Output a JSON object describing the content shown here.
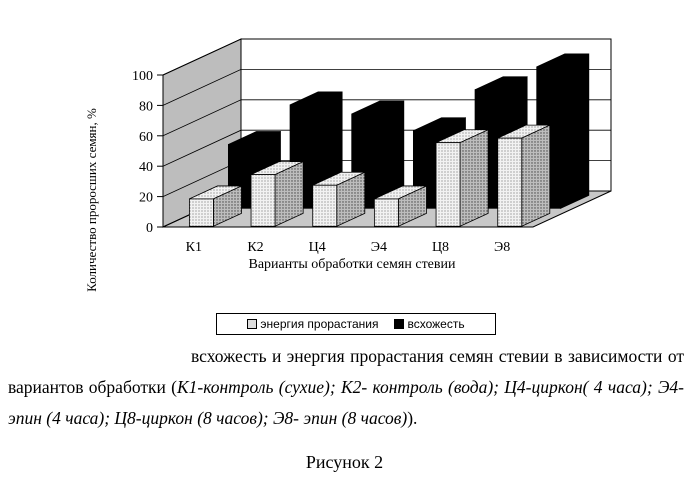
{
  "chart_data": {
    "type": "bar",
    "categories": [
      "К1",
      "К2",
      "Ц4",
      "Э4",
      "Ц8",
      "Э8"
    ],
    "series": [
      {
        "name": "энергия прорастания",
        "values": [
          18,
          34,
          27,
          18,
          55,
          58
        ]
      },
      {
        "name": "всхожесть",
        "values": [
          42,
          68,
          62,
          51,
          78,
          93
        ]
      }
    ],
    "xlabel": "Варианты обработки семян стевии",
    "ylabel": "Количество проросших семян, %",
    "ylim": [
      0,
      100
    ],
    "yticks": [
      0,
      20,
      40,
      60,
      80,
      100
    ],
    "grid": true,
    "legend_position": "bottom",
    "colors": {
      "energy": "#e8e8e8",
      "germination": "#000000",
      "wall": "#ffffff",
      "floor": "#c8c8c8"
    }
  },
  "caption": {
    "line1": "всхожесть и энергия прорастания семян стевии в зависимости от вариантов обработки (",
    "detail": "К1-контроль (сухие); К2- контроль (вода); Ц4-циркон( 4 часа); Э4-эпин (4 часа); Ц8-циркон (8 часов); Э8- эпин (8 часов)",
    "close": ")."
  },
  "figure_label": "Рисунок  2"
}
